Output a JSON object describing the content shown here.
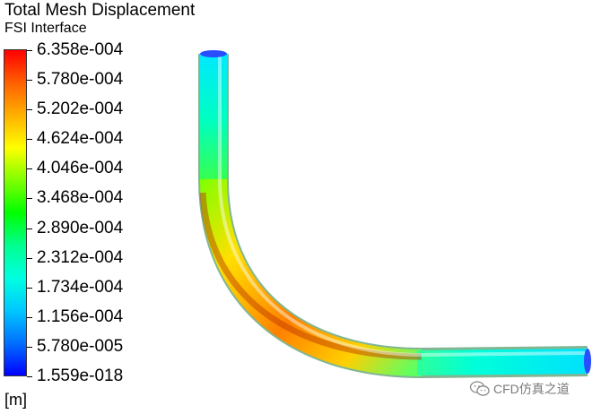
{
  "header": {
    "title": "Total Mesh Displacement",
    "subtitle": "FSI Interface"
  },
  "legend": {
    "ticks": [
      "6.358e-004",
      "5.780e-004",
      "5.202e-004",
      "4.624e-004",
      "4.046e-004",
      "3.468e-004",
      "2.890e-004",
      "2.312e-004",
      "1.734e-004",
      "1.156e-004",
      "5.780e-005",
      "1.559e-018"
    ],
    "unit": "[m]",
    "colors": {
      "min": "#0000ff",
      "mid": "#00ff00",
      "max": "#ff0000"
    }
  },
  "watermark": {
    "text": "CFD仿真之道",
    "icon": "wechat-icon"
  }
}
